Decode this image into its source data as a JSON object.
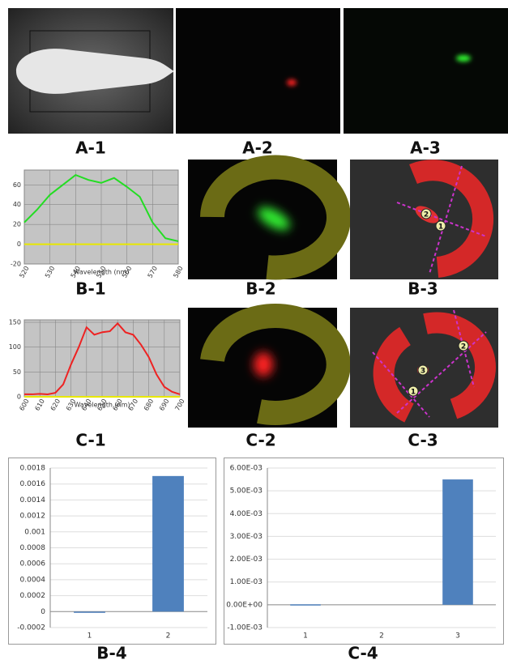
{
  "panel_labels": [
    "A-1",
    "A-2",
    "A-3",
    "B-1",
    "B-2",
    "B-3",
    "C-1",
    "C-2",
    "C-3",
    "B-4",
    "C-4"
  ],
  "image_markers": {
    "B3": [
      "2",
      "1"
    ],
    "C3": [
      "2",
      "3",
      "1"
    ]
  },
  "chart_data": [
    {
      "type": "line",
      "x_label": "Wavelength (nm)",
      "x": [
        520,
        525,
        530,
        535,
        540,
        545,
        550,
        555,
        560,
        565,
        570,
        575,
        580
      ],
      "xlim": [
        520,
        580
      ],
      "xticks": [
        520,
        530,
        540,
        550,
        560,
        570,
        580
      ],
      "ylim": [
        -20,
        75
      ],
      "yticks": [
        -20,
        0,
        20,
        40,
        60
      ],
      "grid": true,
      "series": [
        {
          "color": "#22dd22",
          "values": [
            22,
            35,
            50,
            60,
            70,
            65,
            62,
            67,
            58,
            48,
            22,
            6,
            3
          ]
        },
        {
          "color": "#e8e800",
          "values": [
            0,
            0,
            0,
            0,
            0,
            0,
            0,
            0,
            0,
            0,
            0,
            0,
            0
          ]
        }
      ]
    },
    {
      "type": "line",
      "x_label": "Wavelength (nm)",
      "x": [
        600,
        605,
        610,
        615,
        620,
        625,
        630,
        635,
        640,
        645,
        650,
        655,
        660,
        665,
        670,
        675,
        680,
        685,
        690,
        695,
        700
      ],
      "xlim": [
        600,
        700
      ],
      "xticks": [
        600,
        610,
        620,
        630,
        640,
        650,
        660,
        670,
        680,
        690,
        700
      ],
      "ylim": [
        0,
        155
      ],
      "yticks": [
        0,
        50,
        100,
        150
      ],
      "grid": true,
      "series": [
        {
          "color": "#ee2222",
          "values": [
            5,
            5,
            6,
            5,
            8,
            25,
            65,
            100,
            140,
            125,
            130,
            132,
            148,
            130,
            125,
            105,
            80,
            45,
            20,
            10,
            5
          ]
        },
        {
          "color": "#e8e800",
          "values": [
            0,
            0,
            0,
            0,
            0,
            0,
            0,
            0,
            0,
            0,
            0,
            0,
            0,
            0,
            0,
            0,
            0,
            0,
            0,
            0,
            0
          ]
        }
      ]
    },
    {
      "type": "bar",
      "categories": [
        "1",
        "2"
      ],
      "values": [
        -1e-05,
        0.0017
      ],
      "color": "#4f81bd",
      "ylim": [
        -0.0002,
        0.0018
      ],
      "yticks": [
        -0.0002,
        0,
        0.0002,
        0.0004,
        0.0006,
        0.0008,
        0.001,
        0.0012,
        0.0014,
        0.0016,
        0.0018
      ],
      "grid": true
    },
    {
      "type": "bar",
      "categories": [
        "1",
        "2",
        "3"
      ],
      "values": [
        2e-05,
        0,
        0.0055
      ],
      "color": "#4f81bd",
      "ylim": [
        -0.001,
        0.006
      ],
      "yticks": [
        {
          "value": -0.001,
          "label": "-1.00E-03"
        },
        {
          "value": 0,
          "label": "0.00E+00"
        },
        {
          "value": 0.001,
          "label": "1.00E-03"
        },
        {
          "value": 0.002,
          "label": "2.00E-03"
        },
        {
          "value": 0.003,
          "label": "3.00E-03"
        },
        {
          "value": 0.004,
          "label": "4.00E-03"
        },
        {
          "value": 0.005,
          "label": "5.00E-03"
        },
        {
          "value": 0.006,
          "label": "6.00E-03"
        }
      ],
      "grid": true
    }
  ]
}
